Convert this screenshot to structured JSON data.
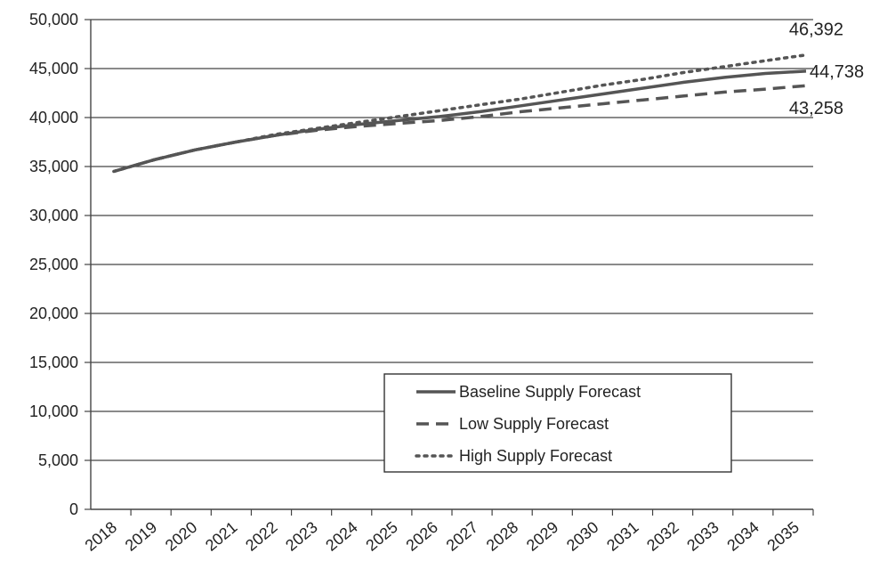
{
  "chart_data": {
    "type": "line",
    "title": "",
    "xlabel": "",
    "ylabel": "",
    "x": [
      "2018",
      "2019",
      "2020",
      "2021",
      "2022",
      "2023",
      "2024",
      "2025",
      "2026",
      "2027",
      "2028",
      "2029",
      "2030",
      "2031",
      "2032",
      "2033",
      "2034",
      "2035"
    ],
    "ylim": [
      0,
      50000
    ],
    "yticks": [
      {
        "value": 0,
        "label": "0"
      },
      {
        "value": 5000,
        "label": "5,000"
      },
      {
        "value": 10000,
        "label": "10,000"
      },
      {
        "value": 15000,
        "label": "15,000"
      },
      {
        "value": 20000,
        "label": "20,000"
      },
      {
        "value": 25000,
        "label": "25,000"
      },
      {
        "value": 30000,
        "label": "30,000"
      },
      {
        "value": 35000,
        "label": "35,000"
      },
      {
        "value": 40000,
        "label": "40,000"
      },
      {
        "value": 45000,
        "label": "45,000"
      },
      {
        "value": 50000,
        "label": "50,000"
      }
    ],
    "grid": true,
    "legend_position": "bottom-right",
    "series": [
      {
        "name": "Baseline Supply Forecast",
        "style": "solid",
        "color": "#555555",
        "values": [
          34500,
          35700,
          36700,
          37500,
          38200,
          38800,
          39300,
          39700,
          40100,
          40600,
          41200,
          41800,
          42400,
          43000,
          43600,
          44100,
          44500,
          44738
        ]
      },
      {
        "name": "Low Supply Forecast",
        "style": "dashed",
        "color": "#555555",
        "values": [
          34500,
          35700,
          36700,
          37500,
          38200,
          38700,
          39100,
          39400,
          39700,
          40100,
          40600,
          41000,
          41400,
          41800,
          42200,
          42600,
          42900,
          43258
        ]
      },
      {
        "name": "High Supply Forecast",
        "style": "dotted",
        "color": "#555555",
        "values": [
          34500,
          35700,
          36700,
          37500,
          38300,
          38900,
          39500,
          40100,
          40700,
          41300,
          41900,
          42600,
          43300,
          43900,
          44600,
          45200,
          45800,
          46392
        ]
      }
    ],
    "annotations": [
      {
        "series": "High Supply Forecast",
        "text": "46,392"
      },
      {
        "series": "Baseline Supply Forecast",
        "text": "44,738"
      },
      {
        "series": "Low Supply Forecast",
        "text": "43,258"
      }
    ]
  }
}
